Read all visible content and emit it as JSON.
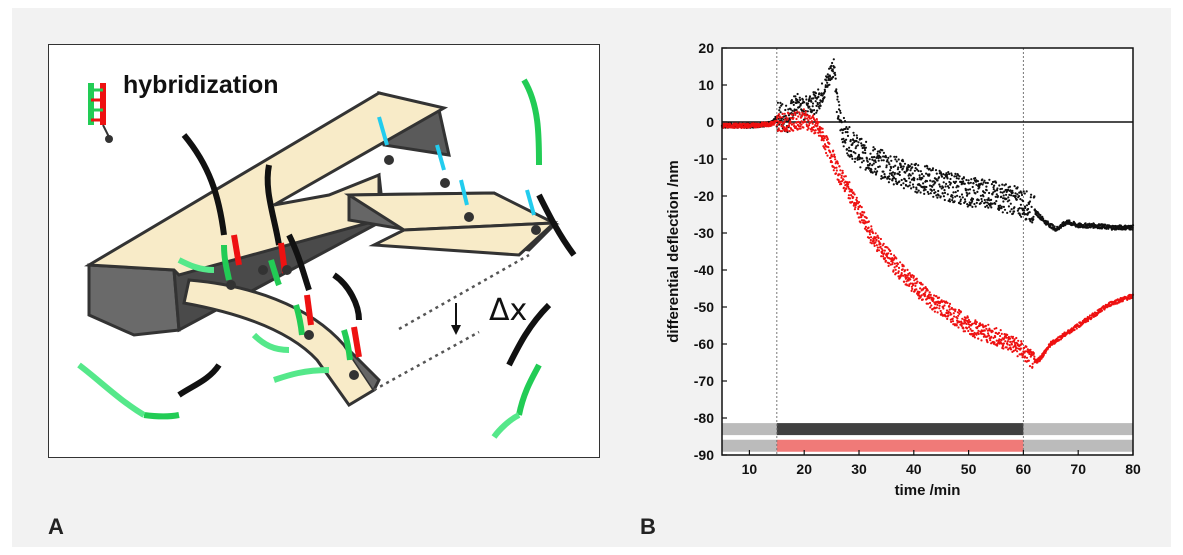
{
  "panel_a": {
    "label": "A",
    "hybridization_label": "hybridization",
    "deflection_label": "Δx"
  },
  "panel_b": {
    "label": "B"
  },
  "colors": {
    "black_trace": "#111111",
    "red_trace": "#ee1111",
    "green_strand": "#22cc55",
    "light_green_strand": "#55e88a",
    "cyan_strand": "#22ccee",
    "cantilever": "#f8ebc8",
    "cantilever_side": "#666666",
    "bar_black": "#404040",
    "bar_red": "#f07a78",
    "bar_grey": "#bbbbbb"
  },
  "chart_data": {
    "type": "scatter",
    "xlabel": "time /min",
    "ylabel": "differential deflection /nm",
    "xlim": [
      5,
      80
    ],
    "ylim": [
      -90,
      20
    ],
    "xticks": [
      10,
      20,
      30,
      40,
      50,
      60,
      70,
      80
    ],
    "yticks": [
      20,
      10,
      0,
      -10,
      -20,
      -30,
      -40,
      -50,
      -60,
      -70,
      -80,
      -90
    ],
    "vlines": [
      15,
      60
    ],
    "hline": 0,
    "series": [
      {
        "color": "black",
        "points": [
          [
            5,
            -1
          ],
          [
            10,
            -1
          ],
          [
            14,
            -0.5
          ],
          [
            15.5,
            2
          ],
          [
            17,
            1
          ],
          [
            18,
            4
          ],
          [
            19,
            5
          ],
          [
            20,
            3
          ],
          [
            21,
            6
          ],
          [
            22,
            5
          ],
          [
            23,
            7
          ],
          [
            24,
            10
          ],
          [
            25,
            14
          ],
          [
            25.5,
            16
          ],
          [
            26,
            4
          ],
          [
            27,
            -2
          ],
          [
            28,
            -5
          ],
          [
            30,
            -8
          ],
          [
            32,
            -10
          ],
          [
            35,
            -12
          ],
          [
            38,
            -14
          ],
          [
            40,
            -15
          ],
          [
            43,
            -16
          ],
          [
            45,
            -17
          ],
          [
            48,
            -18
          ],
          [
            50,
            -19
          ],
          [
            53,
            -19
          ],
          [
            55,
            -20
          ],
          [
            58,
            -21
          ],
          [
            60,
            -22
          ],
          [
            62,
            -24
          ],
          [
            64,
            -27
          ],
          [
            66,
            -29
          ],
          [
            68,
            -27
          ],
          [
            70,
            -28
          ],
          [
            73,
            -28
          ],
          [
            76,
            -28.5
          ],
          [
            80,
            -28.5
          ]
        ]
      },
      {
        "color": "red",
        "points": [
          [
            5,
            -1
          ],
          [
            10,
            -1
          ],
          [
            14,
            -0.5
          ],
          [
            15,
            0
          ],
          [
            18,
            0
          ],
          [
            20,
            1
          ],
          [
            21,
            0
          ],
          [
            22,
            -1
          ],
          [
            23,
            -3
          ],
          [
            24,
            -6
          ],
          [
            25,
            -9
          ],
          [
            26,
            -13
          ],
          [
            28,
            -18
          ],
          [
            30,
            -24
          ],
          [
            32,
            -30
          ],
          [
            35,
            -36
          ],
          [
            38,
            -41
          ],
          [
            40,
            -44
          ],
          [
            43,
            -48
          ],
          [
            45,
            -50
          ],
          [
            48,
            -53
          ],
          [
            50,
            -55
          ],
          [
            53,
            -57
          ],
          [
            55,
            -58
          ],
          [
            58,
            -60
          ],
          [
            60,
            -62
          ],
          [
            62,
            -65
          ],
          [
            63,
            -64
          ],
          [
            65,
            -60
          ],
          [
            68,
            -57
          ],
          [
            70,
            -55
          ],
          [
            73,
            -52
          ],
          [
            76,
            -49
          ],
          [
            78,
            -48
          ],
          [
            80,
            -47
          ]
        ]
      }
    ],
    "bars": [
      {
        "y": -83,
        "segments": [
          {
            "from": 5,
            "to": 15,
            "color": "grey"
          },
          {
            "from": 15,
            "to": 60,
            "color": "black"
          },
          {
            "from": 60,
            "to": 80,
            "color": "grey"
          }
        ]
      },
      {
        "y": -87.5,
        "segments": [
          {
            "from": 5,
            "to": 15,
            "color": "grey"
          },
          {
            "from": 15,
            "to": 60,
            "color": "red"
          },
          {
            "from": 60,
            "to": 80,
            "color": "grey"
          }
        ]
      }
    ]
  }
}
